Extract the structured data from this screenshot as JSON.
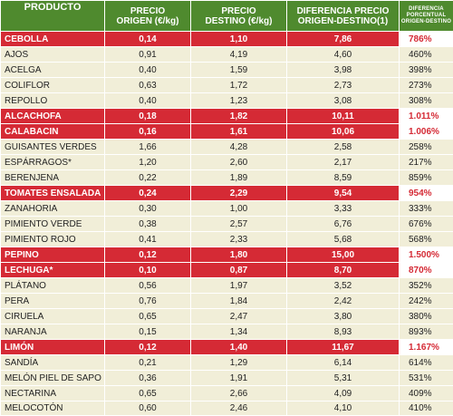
{
  "header": {
    "producto": "PRODUCTO",
    "origen_1": "PRECIO",
    "origen_2": "ORIGEN (€/kg)",
    "destino_1": "PRECIO",
    "destino_2": "DESTINO (€/kg)",
    "diff_1": "DIFERENCIA PRECIO",
    "diff_2": "ORIGEN-DESTINO(1)",
    "pct_1": "DIFERENCIA",
    "pct_2": "PORCENTUAL",
    "pct_3": "ORIGEN-DESTINO"
  },
  "colors": {
    "header_bg": "#4f8a2e",
    "row_bg": "#f1eed8",
    "highlight_bg": "#d52a35",
    "highlight_text": "#ffffff"
  },
  "rows": [
    {
      "producto": "CEBOLLA",
      "origen": "0,14",
      "destino": "1,10",
      "diferencia": "7,86",
      "porcentaje": "786%",
      "highlight": true
    },
    {
      "producto": "AJOS",
      "origen": "0,91",
      "destino": "4,19",
      "diferencia": "4,60",
      "porcentaje": "460%",
      "highlight": false
    },
    {
      "producto": "ACELGA",
      "origen": "0,40",
      "destino": "1,59",
      "diferencia": "3,98",
      "porcentaje": "398%",
      "highlight": false
    },
    {
      "producto": "COLIFLOR",
      "origen": "0,63",
      "destino": "1,72",
      "diferencia": "2,73",
      "porcentaje": "273%",
      "highlight": false
    },
    {
      "producto": "REPOLLO",
      "origen": "0,40",
      "destino": "1,23",
      "diferencia": "3,08",
      "porcentaje": "308%",
      "highlight": false
    },
    {
      "producto": "ALCACHOFA",
      "origen": "0,18",
      "destino": "1,82",
      "diferencia": "10,11",
      "porcentaje": "1.011%",
      "highlight": true
    },
    {
      "producto": "CALABACIN",
      "origen": "0,16",
      "destino": "1,61",
      "diferencia": "10,06",
      "porcentaje": "1.006%",
      "highlight": true
    },
    {
      "producto": "GUISANTES VERDES",
      "origen": "1,66",
      "destino": "4,28",
      "diferencia": "2,58",
      "porcentaje": "258%",
      "highlight": false
    },
    {
      "producto": "ESPÁRRAGOS*",
      "origen": "1,20",
      "destino": "2,60",
      "diferencia": "2,17",
      "porcentaje": "217%",
      "highlight": false
    },
    {
      "producto": "BERENJENA",
      "origen": "0,22",
      "destino": "1,89",
      "diferencia": "8,59",
      "porcentaje": "859%",
      "highlight": false
    },
    {
      "producto": "TOMATES ENSALADA",
      "origen": "0,24",
      "destino": "2,29",
      "diferencia": "9,54",
      "porcentaje": "954%",
      "highlight": true
    },
    {
      "producto": "ZANAHORIA",
      "origen": "0,30",
      "destino": "1,00",
      "diferencia": "3,33",
      "porcentaje": "333%",
      "highlight": false
    },
    {
      "producto": "PIMIENTO VERDE",
      "origen": "0,38",
      "destino": "2,57",
      "diferencia": "6,76",
      "porcentaje": "676%",
      "highlight": false
    },
    {
      "producto": "PIMIENTO ROJO",
      "origen": "0,41",
      "destino": "2,33",
      "diferencia": "5,68",
      "porcentaje": "568%",
      "highlight": false
    },
    {
      "producto": "PEPINO",
      "origen": "0,12",
      "destino": "1,80",
      "diferencia": "15,00",
      "porcentaje": "1.500%",
      "highlight": true
    },
    {
      "producto": "LECHUGA*",
      "origen": "0,10",
      "destino": "0,87",
      "diferencia": "8,70",
      "porcentaje": "870%",
      "highlight": true
    },
    {
      "producto": "PLÁTANO",
      "origen": "0,56",
      "destino": "1,97",
      "diferencia": "3,52",
      "porcentaje": "352%",
      "highlight": false
    },
    {
      "producto": "PERA",
      "origen": "0,76",
      "destino": "1,84",
      "diferencia": "2,42",
      "porcentaje": "242%",
      "highlight": false
    },
    {
      "producto": "CIRUELA",
      "origen": "0,65",
      "destino": "2,47",
      "diferencia": "3,80",
      "porcentaje": "380%",
      "highlight": false
    },
    {
      "producto": "NARANJA",
      "origen": "0,15",
      "destino": "1,34",
      "diferencia": "8,93",
      "porcentaje": "893%",
      "highlight": false
    },
    {
      "producto": "LIMÓN",
      "origen": "0,12",
      "destino": "1,40",
      "diferencia": "11,67",
      "porcentaje": "1.167%",
      "highlight": true
    },
    {
      "producto": "SANDÍA",
      "origen": "0,21",
      "destino": "1,29",
      "diferencia": "6,14",
      "porcentaje": "614%",
      "highlight": false
    },
    {
      "producto": "MELÓN PIEL DE SAPO",
      "origen": "0,36",
      "destino": "1,91",
      "diferencia": "5,31",
      "porcentaje": "531%",
      "highlight": false
    },
    {
      "producto": "NECTARINA",
      "origen": "0,65",
      "destino": "2,66",
      "diferencia": "4,09",
      "porcentaje": "409%",
      "highlight": false
    },
    {
      "producto": "MELOCOTÓN",
      "origen": "0,60",
      "destino": "2,46",
      "diferencia": "4,10",
      "porcentaje": "410%",
      "highlight": false
    }
  ]
}
